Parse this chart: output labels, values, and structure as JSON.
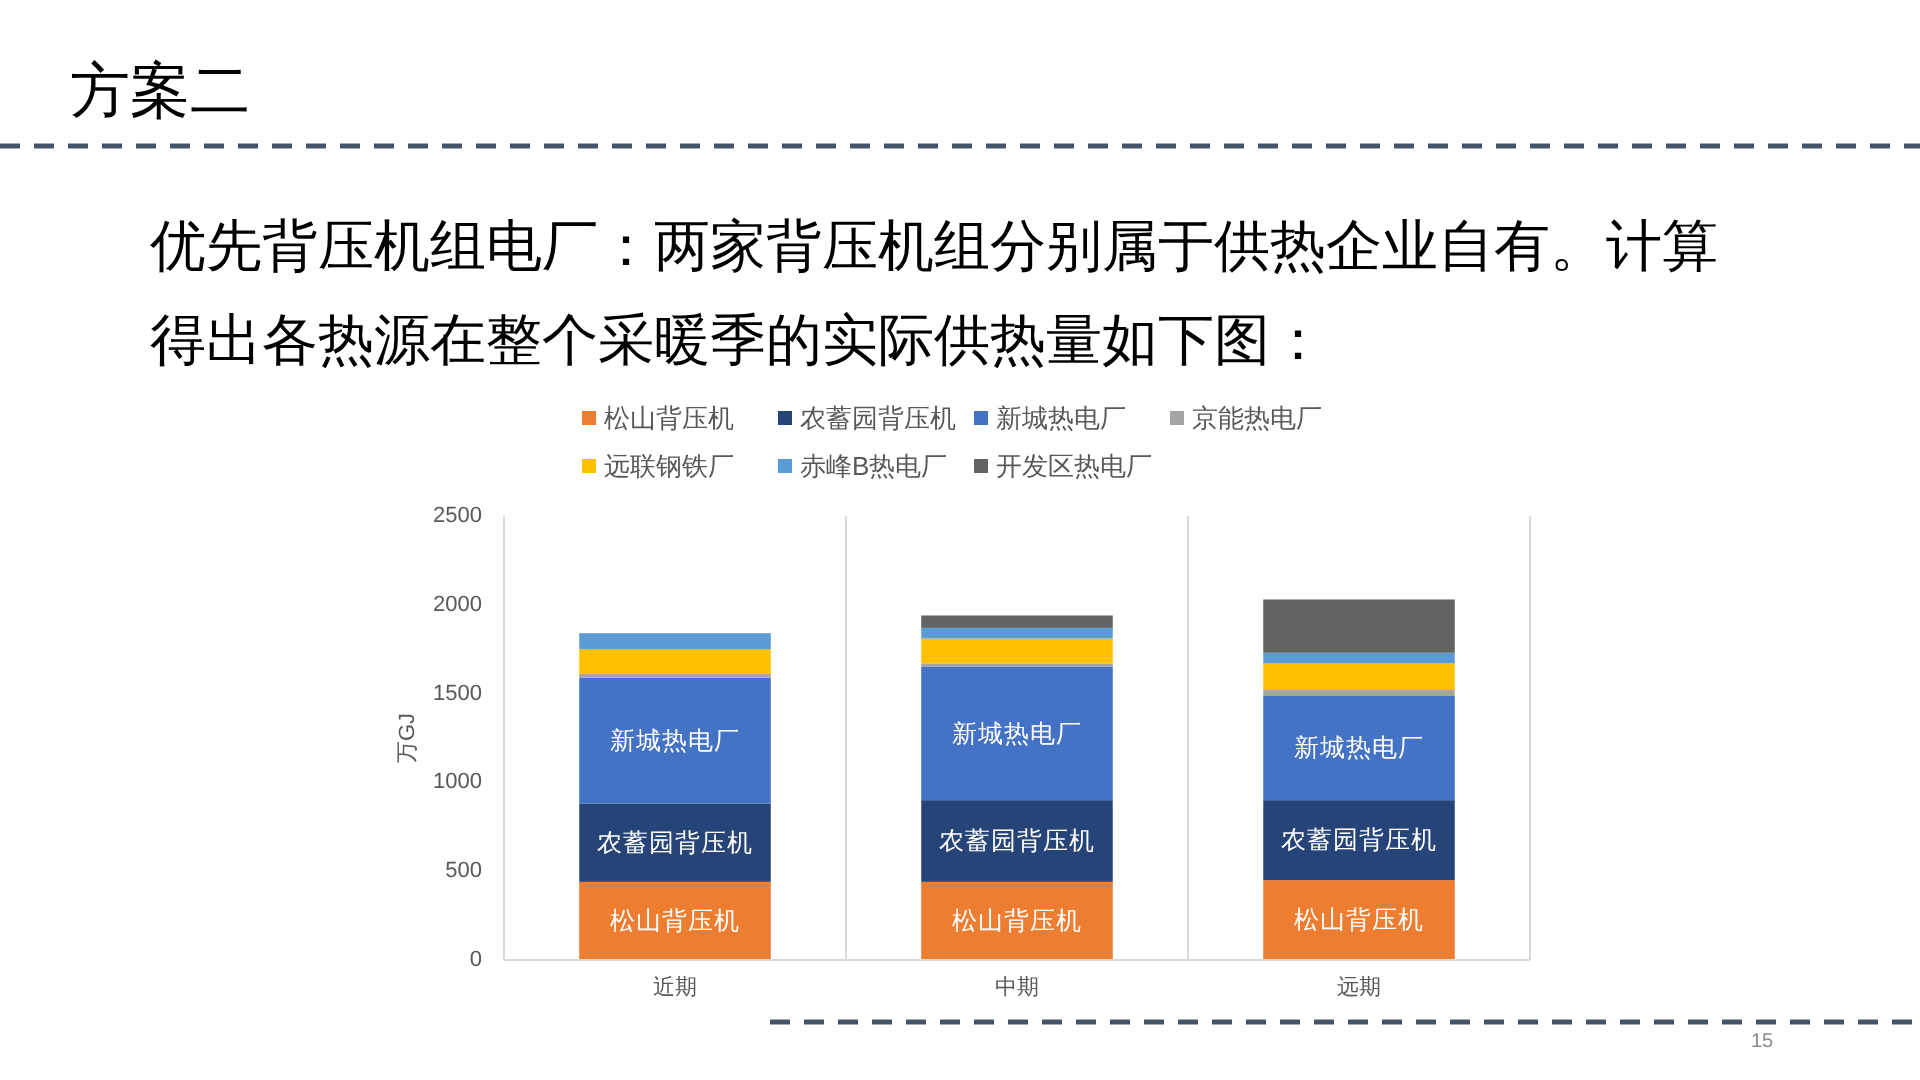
{
  "chart_data": {
    "type": "bar",
    "stacked": true,
    "title": "方案二",
    "subtitle": "优先背压机组电厂：两家背压机组分别属于供热企业自有。计算得出各热源在整个采暖季的实际供热量如下图：",
    "ylabel": "万GJ",
    "categories": [
      "近期",
      "中期",
      "远期"
    ],
    "series": [
      {
        "name": "松山背压机",
        "color": "#ed7d31",
        "values": [
          440,
          440,
          450
        ],
        "value_labels": [
          "松山背压机",
          "松山背压机",
          "松山背压机"
        ]
      },
      {
        "name": "农蓄园背压机",
        "color": "#264478",
        "values": [
          440,
          460,
          450
        ],
        "value_labels": [
          "农蓄园背压机",
          "农蓄园背压机",
          "农蓄园背压机"
        ]
      },
      {
        "name": "新城热电厂",
        "color": "#4472c4",
        "values": [
          710,
          750,
          590
        ],
        "value_labels": [
          "新城热电厂",
          "新城热电厂",
          "新城热电厂"
        ]
      },
      {
        "name": "京能热电厂",
        "color": "#a5a5a5",
        "values": [
          20,
          20,
          30
        ]
      },
      {
        "name": "远联钢铁厂",
        "color": "#ffc000",
        "values": [
          140,
          140,
          150
        ]
      },
      {
        "name": "赤峰B热电厂",
        "color": "#5b9bd5",
        "values": [
          90,
          60,
          60
        ]
      },
      {
        "name": "开发区热电厂",
        "color": "#636363",
        "values": [
          0,
          70,
          300
        ]
      }
    ],
    "ylim": [
      0,
      2500
    ],
    "yticks": [
      0,
      500,
      1000,
      1500,
      2000,
      2500
    ],
    "grid": "x",
    "legend": "top",
    "annotations": [
      "15"
    ]
  }
}
